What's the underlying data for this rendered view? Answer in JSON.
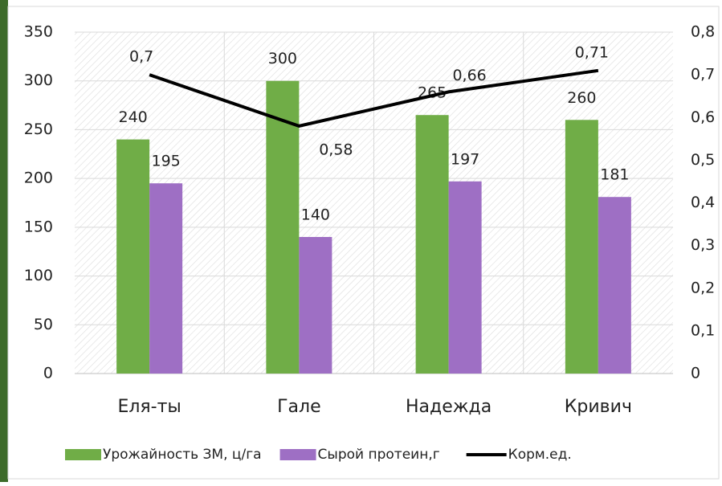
{
  "chart_data": {
    "type": "combo",
    "categories": [
      "Еля-ты",
      "Гале",
      "Надежда",
      "Кривич"
    ],
    "series": [
      {
        "name": "Урожайность ЗМ, ц/га",
        "type": "bar",
        "color": "#70ad47",
        "values": [
          240,
          300,
          265,
          260
        ]
      },
      {
        "name": "Сырой протеин,г",
        "type": "bar",
        "color": "#9e6fc4",
        "values": [
          195,
          140,
          197,
          181
        ]
      },
      {
        "name": "Корм.ед.",
        "type": "line",
        "axis": "y2",
        "color": "#000000",
        "values": [
          0.7,
          0.58,
          0.66,
          0.71
        ],
        "value_labels": [
          "0,7",
          "0,58",
          "0,66",
          "0,71"
        ]
      }
    ],
    "ylim": [
      0,
      350
    ],
    "yticks": [
      0,
      50,
      100,
      150,
      200,
      250,
      300,
      350
    ],
    "y2lim": [
      0,
      0.8
    ],
    "y2ticks": [
      0,
      {
        "value": 0.1,
        "label": "0,1"
      },
      {
        "value": 0.2,
        "label": "0,2"
      },
      {
        "value": 0.3,
        "label": "0,3"
      },
      {
        "value": 0.4,
        "label": "0,4"
      },
      {
        "value": 0.5,
        "label": "0,5"
      },
      {
        "value": 0.6,
        "label": "0,6"
      },
      {
        "value": 0.7,
        "label": "0,7"
      },
      {
        "value": 0.8,
        "label": "0,8"
      }
    ],
    "grid": true,
    "legend": "bottom"
  }
}
